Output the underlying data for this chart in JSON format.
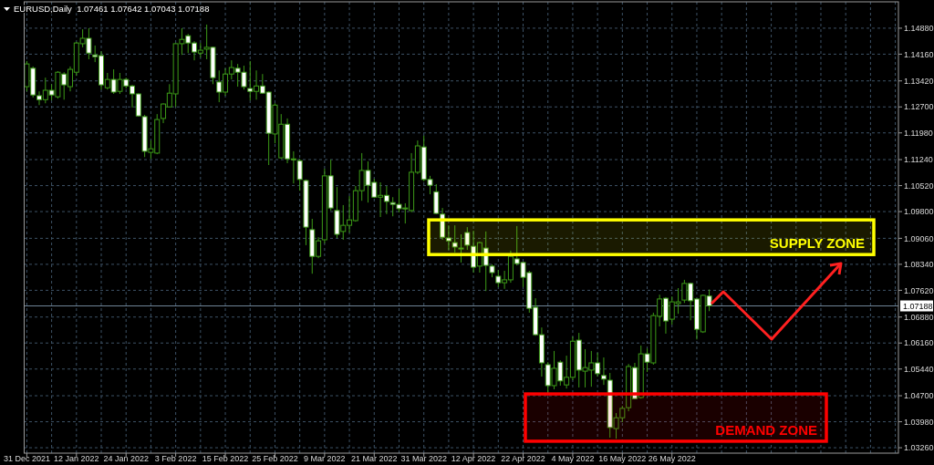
{
  "chart_data": {
    "type": "candlestick",
    "title": "EURUSD,Daily  1.07461 1.07642 1.07043 1.07188",
    "categories": [
      "31 Dec 2021",
      null,
      null,
      null,
      null,
      null,
      null,
      null,
      "12 Jan 2022",
      null,
      null,
      null,
      null,
      null,
      null,
      null,
      "24 Jan 2022",
      null,
      null,
      null,
      null,
      null,
      null,
      null,
      "3 Feb 2022",
      null,
      null,
      null,
      null,
      null,
      null,
      null,
      "15 Feb 2022",
      null,
      null,
      null,
      null,
      null,
      null,
      null,
      "25 Feb 2022",
      null,
      null,
      null,
      null,
      null,
      null,
      null,
      "9 Mar 2022",
      null,
      null,
      null,
      null,
      null,
      null,
      null,
      "21 Mar 2022",
      null,
      null,
      null,
      null,
      null,
      null,
      null,
      "31 Mar 2022",
      null,
      null,
      null,
      null,
      null,
      null,
      null,
      "12 Apr 2022",
      null,
      null,
      null,
      null,
      null,
      null,
      null,
      "22 Apr 2022",
      null,
      null,
      null,
      null,
      null,
      null,
      null,
      "4 May 2022",
      null,
      null,
      null,
      null,
      null,
      null,
      null,
      "16 May 2022",
      null,
      null,
      null,
      null,
      null,
      null,
      null,
      "26 May 2022",
      null,
      null,
      null,
      null,
      null,
      null,
      null,
      null,
      null,
      null,
      null,
      null,
      null,
      null,
      null,
      null,
      null,
      null,
      null,
      null,
      null,
      null,
      null,
      null,
      null,
      null,
      null,
      null,
      null,
      null,
      null,
      null,
      null,
      null,
      null,
      null
    ],
    "ohlc": [
      [
        1.1326,
        1.1397,
        1.1313,
        1.1389
      ],
      [
        1.1377,
        1.1382,
        1.1296,
        1.1303
      ],
      [
        1.1301,
        1.1313,
        1.1275,
        1.129
      ],
      [
        1.129,
        1.1351,
        1.128,
        1.1316
      ],
      [
        1.1316,
        1.1333,
        1.1288,
        1.1303
      ],
      [
        1.1298,
        1.1369,
        1.1293,
        1.1366
      ],
      [
        1.1361,
        1.1366,
        1.129,
        1.1331
      ],
      [
        1.1326,
        1.1382,
        1.1313,
        1.1374
      ],
      [
        1.1366,
        1.145,
        1.1356,
        1.1447
      ],
      [
        1.1445,
        1.1485,
        1.1435,
        1.146
      ],
      [
        1.146,
        1.1488,
        1.1402,
        1.1419
      ],
      [
        1.1414,
        1.144,
        1.1394,
        1.1409
      ],
      [
        1.1412,
        1.1424,
        1.1318,
        1.1331
      ],
      [
        1.1323,
        1.1364,
        1.1318,
        1.1346
      ],
      [
        1.1346,
        1.1374,
        1.1306,
        1.1311
      ],
      [
        1.1313,
        1.1364,
        1.1306,
        1.1346
      ],
      [
        1.1346,
        1.1351,
        1.1321,
        1.1328
      ],
      [
        1.1328,
        1.1331,
        1.1268,
        1.1306
      ],
      [
        1.1306,
        1.1308,
        1.1243,
        1.1245
      ],
      [
        1.1243,
        1.1248,
        1.1131,
        1.1147
      ],
      [
        1.1144,
        1.1177,
        1.1126,
        1.1154
      ],
      [
        1.1142,
        1.125,
        1.1139,
        1.1235
      ],
      [
        1.1238,
        1.128,
        1.1225,
        1.1278
      ],
      [
        1.127,
        1.1333,
        1.1268,
        1.1308
      ],
      [
        1.1306,
        1.1447,
        1.127,
        1.1445
      ],
      [
        1.1445,
        1.1488,
        1.1414,
        1.1457
      ],
      [
        1.1467,
        1.1472,
        1.1419,
        1.1447
      ],
      [
        1.1447,
        1.1452,
        1.1399,
        1.1422
      ],
      [
        1.1419,
        1.1447,
        1.1407,
        1.1427
      ],
      [
        1.143,
        1.1498,
        1.1402,
        1.1435
      ],
      [
        1.1435,
        1.1437,
        1.1333,
        1.1351
      ],
      [
        1.1339,
        1.1371,
        1.1283,
        1.1311
      ],
      [
        1.1311,
        1.1377,
        1.1301,
        1.1361
      ],
      [
        1.1361,
        1.1399,
        1.1346,
        1.1379
      ],
      [
        1.1377,
        1.1389,
        1.1326,
        1.1366
      ],
      [
        1.1366,
        1.1384,
        1.1318,
        1.1326
      ],
      [
        1.1321,
        1.1397,
        1.1288,
        1.1313
      ],
      [
        1.1313,
        1.1371,
        1.129,
        1.1328
      ],
      [
        1.1328,
        1.1361,
        1.1306,
        1.1308
      ],
      [
        1.1311,
        1.1313,
        1.1109,
        1.1197
      ],
      [
        1.1195,
        1.128,
        1.1169,
        1.1275
      ],
      [
        1.1129,
        1.125,
        1.1126,
        1.1222
      ],
      [
        1.1222,
        1.1238,
        1.1114,
        1.1126
      ],
      [
        1.1126,
        1.1147,
        1.1058,
        1.1124
      ],
      [
        1.1121,
        1.1126,
        1.1038,
        1.1069
      ],
      [
        1.1066,
        1.1069,
        1.0887,
        1.0937
      ],
      [
        1.093,
        1.096,
        1.0808,
        1.0856
      ],
      [
        1.0856,
        1.0909,
        1.0851,
        1.0899
      ],
      [
        1.0902,
        1.1099,
        1.0892,
        1.1079
      ],
      [
        1.1079,
        1.1124,
        1.0983,
        1.099
      ],
      [
        1.0983,
        1.1048,
        1.0907,
        1.0917
      ],
      [
        1.0925,
        1.0998,
        1.0902,
        1.0942
      ],
      [
        1.0942,
        1.1023,
        1.0922,
        1.0957
      ],
      [
        1.0955,
        1.1051,
        1.0952,
        1.1038
      ],
      [
        1.1038,
        1.1142,
        1.101,
        1.1094
      ],
      [
        1.1094,
        1.1119,
        1.1005,
        1.1053
      ],
      [
        1.1061,
        1.1071,
        1.1018,
        1.102
      ],
      [
        1.102,
        1.1061,
        1.0965,
        1.1025
      ],
      [
        1.1025,
        1.1051,
        1.0973,
        1.1008
      ],
      [
        1.1005,
        1.102,
        1.0967,
        1.1
      ],
      [
        1.1,
        1.1043,
        1.0978,
        1.0988
      ],
      [
        1.099,
        1.1003,
        1.0947,
        1.0988
      ],
      [
        1.0983,
        1.1142,
        1.0978,
        1.1089
      ],
      [
        1.1089,
        1.1177,
        1.1084,
        1.1162
      ],
      [
        1.1159,
        1.119,
        1.1064,
        1.1069
      ],
      [
        1.1069,
        1.1079,
        1.1028,
        1.1053
      ],
      [
        1.1035,
        1.1056,
        1.0973,
        1.0975
      ],
      [
        1.0973,
        1.099,
        1.0902,
        1.0909
      ],
      [
        1.0907,
        1.0942,
        1.0874,
        1.0899
      ],
      [
        1.0894,
        1.0942,
        1.0867,
        1.0882
      ],
      [
        1.0877,
        1.0917,
        1.0839,
        1.0879
      ],
      [
        1.0922,
        1.0937,
        1.0874,
        1.0887
      ],
      [
        1.0884,
        1.0927,
        1.0811,
        1.0826
      ],
      [
        1.0829,
        1.0897,
        1.0811,
        1.0894
      ],
      [
        1.0879,
        1.0925,
        1.076,
        1.0831
      ],
      [
        1.0829,
        1.0834,
        1.0798,
        1.0811
      ],
      [
        1.0801,
        1.0818,
        1.0771,
        1.0783
      ],
      [
        1.0783,
        1.0816,
        1.0766,
        1.0791
      ],
      [
        1.0791,
        1.0872,
        1.0783,
        1.0856
      ],
      [
        1.0849,
        1.094,
        1.0831,
        1.0836
      ],
      [
        1.0839,
        1.0841,
        1.0771,
        1.0798
      ],
      [
        1.0811,
        1.0816,
        1.07,
        1.0712
      ],
      [
        1.0715,
        1.074,
        1.0636,
        1.0639
      ],
      [
        1.0639,
        1.0659,
        1.0523,
        1.0561
      ],
      [
        1.0556,
        1.0563,
        1.0477,
        1.0498
      ],
      [
        1.0498,
        1.0594,
        1.0488,
        1.0546
      ],
      [
        1.0563,
        1.0568,
        1.0498,
        1.0511
      ],
      [
        1.05,
        1.0581,
        1.049,
        1.0521
      ],
      [
        1.0521,
        1.0634,
        1.0513,
        1.0621
      ],
      [
        1.0624,
        1.0644,
        1.0493,
        1.0541
      ],
      [
        1.0538,
        1.0599,
        1.0493,
        1.0548
      ],
      [
        1.0541,
        1.0594,
        1.0495,
        1.0561
      ],
      [
        1.0561,
        1.0589,
        1.0523,
        1.0531
      ],
      [
        1.0526,
        1.0576,
        1.05,
        1.0516
      ],
      [
        1.0513,
        1.0533,
        1.0354,
        1.0382
      ],
      [
        1.0379,
        1.0422,
        1.0351,
        1.0409
      ],
      [
        1.0409,
        1.0442,
        1.0397,
        1.0435
      ],
      [
        1.0437,
        1.0558,
        1.0427,
        1.0551
      ],
      [
        1.0548,
        1.0561,
        1.046,
        1.0462
      ],
      [
        1.0465,
        1.0609,
        1.0462,
        1.0586
      ],
      [
        1.0586,
        1.0601,
        1.0536,
        1.0563
      ],
      [
        1.0561,
        1.07,
        1.0556,
        1.0692
      ],
      [
        1.069,
        1.075,
        1.0662,
        1.0738
      ],
      [
        1.074,
        1.0743,
        1.0642,
        1.0677
      ],
      [
        1.0682,
        1.0745,
        1.0667,
        1.073
      ],
      [
        1.0725,
        1.0768,
        1.0697,
        1.073
      ],
      [
        1.0735,
        1.0791,
        1.0727,
        1.0781
      ],
      [
        1.0781,
        1.0783,
        1.0679,
        1.0733
      ],
      [
        1.0738,
        1.074,
        1.0626,
        1.0654
      ],
      [
        1.0647,
        1.075,
        1.0644,
        1.0748
      ],
      [
        1.07461,
        1.07642,
        1.07043,
        1.07188
      ],
      null,
      null,
      null,
      null,
      null,
      null,
      null,
      null,
      null,
      null,
      null,
      null,
      null,
      null,
      null,
      null,
      null,
      null,
      null,
      null,
      null,
      null,
      null,
      null,
      null,
      null,
      null,
      null,
      null,
      null
    ],
    "color": "#3c9a17",
    "ylim": [
      1.0311,
      1.1561
    ],
    "yticks": [
      {
        "value": 1.0326,
        "label": "1.03260"
      },
      {
        "value": 1.0398,
        "label": "1.03980"
      },
      {
        "value": 1.047,
        "label": "1.04700"
      },
      {
        "value": 1.0544,
        "label": "1.05440"
      },
      {
        "value": 1.0616,
        "label": "1.06160"
      },
      {
        "value": 1.0688,
        "label": "1.06880"
      },
      {
        "value": 1.0762,
        "label": "1.07620"
      },
      {
        "value": 1.0834,
        "label": "1.08340"
      },
      {
        "value": 1.0906,
        "label": "1.09060"
      },
      {
        "value": 1.098,
        "label": "1.09800"
      },
      {
        "value": 1.1052,
        "label": "1.10520"
      },
      {
        "value": 1.1124,
        "label": "1.11240"
      },
      {
        "value": 1.1198,
        "label": "1.11980"
      },
      {
        "value": 1.127,
        "label": "1.12700"
      },
      {
        "value": 1.1342,
        "label": "1.13420"
      },
      {
        "value": 1.1416,
        "label": "1.14160"
      },
      {
        "value": 1.1488,
        "label": "1.14880"
      }
    ],
    "grid": true,
    "ref_lines": [
      {
        "axis": "y",
        "value": 1.07188,
        "label": "1.07188",
        "color": "#6f8396"
      }
    ],
    "bands": [
      {
        "axis": "y",
        "from": 1.0861,
        "to": 1.0957,
        "label": "SUPPLY ZONE",
        "color": "#ffff00"
      },
      {
        "axis": "y",
        "from": 1.0344,
        "to": 1.0475,
        "label": "DEMAND ZONE",
        "color": "#ff0000"
      }
    ]
  }
}
